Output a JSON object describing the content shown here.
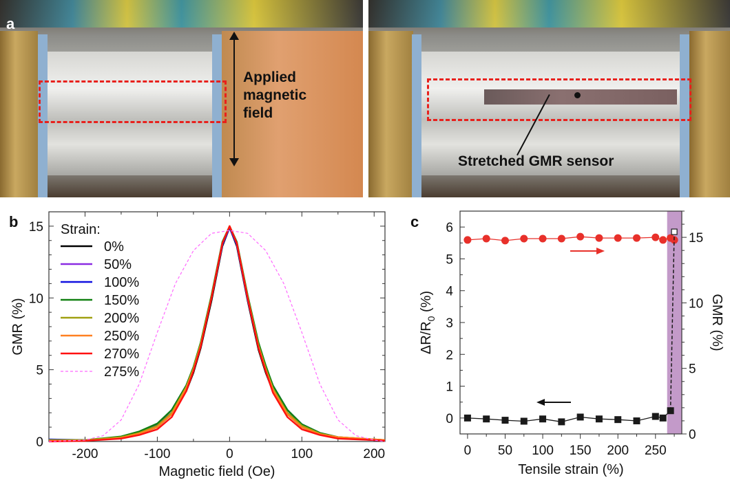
{
  "panels": {
    "a": "a",
    "b": "b",
    "c": "c"
  },
  "photo_left": {
    "annotation": [
      "Applied",
      "magnetic",
      "field"
    ]
  },
  "photo_right": {
    "annotation": "Stretched GMR sensor"
  },
  "colors": {
    "highlight_box": "#e8201c",
    "failure_band": "#c39ac9",
    "gmr_series": "#e8302a",
    "resistance_series": "#1a1a1a"
  },
  "chart_data": [
    {
      "type": "line",
      "panel": "b",
      "xlabel": "Magnetic field (Oe)",
      "ylabel": "GMR (%)",
      "xlim": [
        -250,
        215
      ],
      "ylim": [
        0,
        16
      ],
      "xticks": [
        -200,
        -100,
        0,
        100,
        200
      ],
      "yticks": [
        0,
        5,
        10,
        15
      ],
      "legend_title": "Strain:",
      "legend_position": "top-left",
      "x": [
        -250,
        -200,
        -150,
        -125,
        -100,
        -80,
        -60,
        -50,
        -40,
        -25,
        -10,
        0,
        10,
        25,
        40,
        50,
        60,
        80,
        100,
        125,
        150,
        200,
        215
      ],
      "series": [
        {
          "name": "0%",
          "color": "#000000",
          "values": [
            0.1,
            0.1,
            0.25,
            0.55,
            1.0,
            1.9,
            3.5,
            4.8,
            6.5,
            9.8,
            13.6,
            14.9,
            13.6,
            9.8,
            6.4,
            4.8,
            3.5,
            1.9,
            1.0,
            0.5,
            0.25,
            0.1,
            0.1
          ]
        },
        {
          "name": "50%",
          "color": "#8a2be2",
          "values": [
            0.1,
            0.1,
            0.25,
            0.6,
            1.1,
            2.0,
            3.7,
            5.0,
            6.7,
            10.0,
            13.7,
            14.9,
            13.7,
            9.9,
            6.6,
            5.0,
            3.7,
            2.0,
            1.1,
            0.55,
            0.25,
            0.1,
            0.1
          ]
        },
        {
          "name": "100%",
          "color": "#1010e0",
          "values": [
            0.15,
            0.1,
            0.3,
            0.65,
            1.2,
            2.2,
            3.9,
            5.1,
            6.8,
            10.1,
            13.7,
            14.9,
            13.7,
            10.0,
            6.8,
            5.2,
            3.9,
            2.2,
            1.2,
            0.6,
            0.3,
            0.1,
            0.1
          ]
        },
        {
          "name": "150%",
          "color": "#108010",
          "values": [
            0.1,
            0.1,
            0.35,
            0.7,
            1.25,
            2.2,
            3.9,
            5.2,
            6.9,
            10.2,
            13.9,
            15.0,
            13.9,
            10.2,
            6.9,
            5.3,
            3.9,
            2.2,
            1.2,
            0.6,
            0.3,
            0.15,
            0.1
          ]
        },
        {
          "name": "200%",
          "color": "#a0a010",
          "values": [
            0.1,
            0.1,
            0.3,
            0.6,
            1.1,
            2.0,
            3.8,
            5.1,
            6.8,
            10.1,
            13.8,
            15.0,
            13.8,
            10.1,
            6.7,
            5.1,
            3.7,
            2.0,
            1.1,
            0.55,
            0.3,
            0.15,
            0.1
          ]
        },
        {
          "name": "250%",
          "color": "#ff8020",
          "values": [
            0.05,
            0.05,
            0.25,
            0.55,
            1.0,
            1.9,
            3.7,
            5.0,
            6.7,
            10.0,
            13.8,
            15.0,
            13.8,
            10.0,
            6.6,
            5.0,
            3.6,
            1.9,
            1.0,
            0.5,
            0.3,
            0.15,
            0.1
          ]
        },
        {
          "name": "270%",
          "color": "#ff1010",
          "values": [
            0.0,
            0.05,
            0.2,
            0.45,
            0.85,
            1.7,
            3.5,
            4.9,
            6.6,
            10.0,
            13.8,
            15.0,
            13.8,
            10.0,
            6.5,
            4.9,
            3.4,
            1.7,
            0.85,
            0.45,
            0.2,
            0.1,
            0.05
          ]
        },
        {
          "name": "275%",
          "color": "#ff66ff",
          "dashed": true,
          "x": [
            -250,
            -200,
            -175,
            -150,
            -125,
            -100,
            -75,
            -50,
            -25,
            0,
            25,
            50,
            75,
            100,
            125,
            150,
            175,
            200,
            215
          ],
          "values": [
            0.0,
            0.1,
            0.4,
            1.5,
            4.0,
            7.6,
            11.0,
            13.3,
            14.5,
            14.7,
            14.5,
            13.3,
            11.0,
            7.6,
            4.0,
            1.5,
            0.4,
            0.1,
            0.0
          ]
        }
      ]
    },
    {
      "type": "line",
      "panel": "c",
      "xlabel": "Tensile strain (%)",
      "ylabel_left": {
        "main": "ΔR/R",
        "sub": "0",
        "tail": " (%)"
      },
      "ylabel_right": "GMR (%)",
      "xlim": [
        -10,
        285
      ],
      "ylim_left": [
        -0.5,
        6.5
      ],
      "ylim_right": [
        0,
        17
      ],
      "xticks": [
        0,
        50,
        100,
        150,
        200,
        250
      ],
      "yticks_left": [
        0,
        1,
        2,
        3,
        4,
        5,
        6
      ],
      "yticks_right": [
        0,
        5,
        10,
        15
      ],
      "shaded_region": [
        265.5,
        285
      ],
      "series": [
        {
          "axis": "right",
          "marker": "circle",
          "color": "#e8302a",
          "x": [
            0,
            25,
            50,
            75,
            100,
            125,
            150,
            175,
            200,
            225,
            250,
            260,
            270,
            275
          ],
          "values": [
            14.8,
            14.9,
            14.75,
            14.9,
            14.9,
            14.9,
            15.05,
            14.95,
            14.95,
            14.95,
            15.0,
            14.8,
            14.95,
            14.8
          ]
        },
        {
          "axis": "left",
          "marker": "square",
          "color": "#1a1a1a",
          "x": [
            0,
            25,
            50,
            75,
            100,
            125,
            150,
            175,
            200,
            225,
            250,
            260,
            270
          ],
          "values": [
            0.0,
            -0.03,
            -0.07,
            -0.1,
            -0.03,
            -0.12,
            0.03,
            -0.03,
            -0.05,
            -0.09,
            0.05,
            0.0,
            0.23
          ]
        },
        {
          "axis": "left",
          "marker": "open-square",
          "dashed": true,
          "color": "#1a1a1a",
          "x": [
            270,
            275
          ],
          "values": [
            0.23,
            5.85
          ]
        }
      ]
    }
  ]
}
